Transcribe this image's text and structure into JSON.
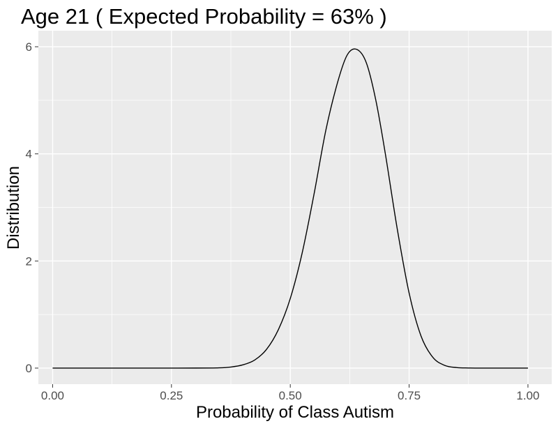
{
  "chart_data": {
    "type": "line",
    "title": "Age  21 ( Expected Probability = 63% )",
    "xlabel": "Probability of Class Autism",
    "ylabel": "Distribution",
    "xlim": [
      -0.03,
      1.05
    ],
    "ylim": [
      -0.3,
      6.3
    ],
    "x_ticks": [
      "0.00",
      "0.25",
      "0.50",
      "0.75",
      "1.00"
    ],
    "x_tick_values": [
      0,
      0.25,
      0.5,
      0.75,
      1
    ],
    "y_ticks": [
      "0",
      "2",
      "4",
      "6"
    ],
    "y_tick_values": [
      0,
      2,
      4,
      6
    ],
    "grid": true,
    "panel_background": "#ebebeb",
    "grid_color": "#ffffff",
    "line_color": "#000000",
    "series": [
      {
        "x": [
          0,
          0.3,
          0.35,
          0.375,
          0.4,
          0.425,
          0.45,
          0.475,
          0.5,
          0.525,
          0.55,
          0.575,
          0.6,
          0.62,
          0.64,
          0.66,
          0.68,
          0.7,
          0.725,
          0.75,
          0.775,
          0.8,
          0.825,
          0.85,
          0.875,
          0.9,
          1
        ],
        "y": [
          0,
          0.001,
          0.005,
          0.02,
          0.06,
          0.15,
          0.35,
          0.72,
          1.3,
          2.15,
          3.25,
          4.45,
          5.35,
          5.85,
          5.95,
          5.7,
          5.0,
          4.0,
          2.6,
          1.4,
          0.6,
          0.2,
          0.05,
          0.01,
          0.002,
          0.0,
          0.0
        ]
      }
    ]
  }
}
